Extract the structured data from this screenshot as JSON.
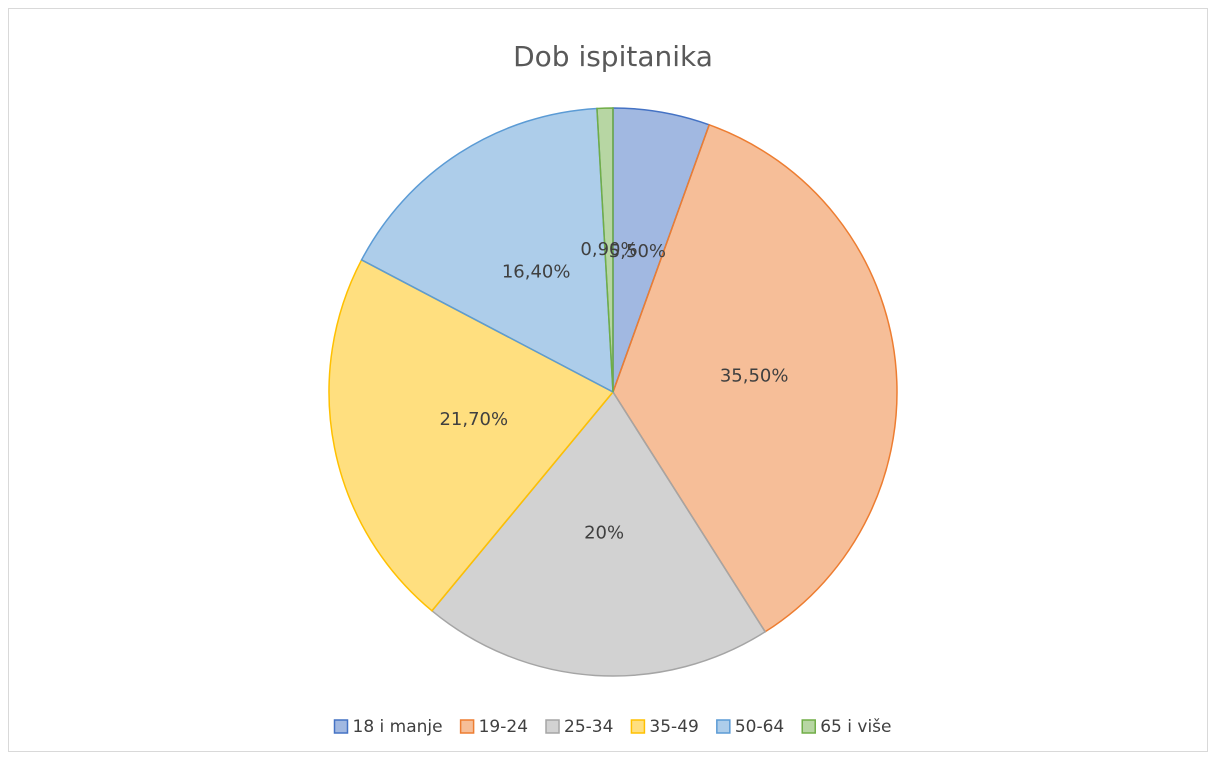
{
  "chart_data": {
    "type": "pie",
    "title": "Dob ispitanika",
    "categories": [
      "18 i manje",
      "19-24",
      "25-34",
      "35-49",
      "50-64",
      "65 i više"
    ],
    "values": [
      5.5,
      35.5,
      20,
      21.7,
      16.4,
      0.9
    ],
    "value_labels": [
      "5,50%",
      "35,50%",
      "20%",
      "21,70%",
      "16,40%",
      "0,90%"
    ],
    "colors": [
      "#4472c4",
      "#ed7d31",
      "#a5a5a5",
      "#ffc000",
      "#5b9bd5",
      "#70ad47"
    ],
    "legend": "bottom"
  }
}
